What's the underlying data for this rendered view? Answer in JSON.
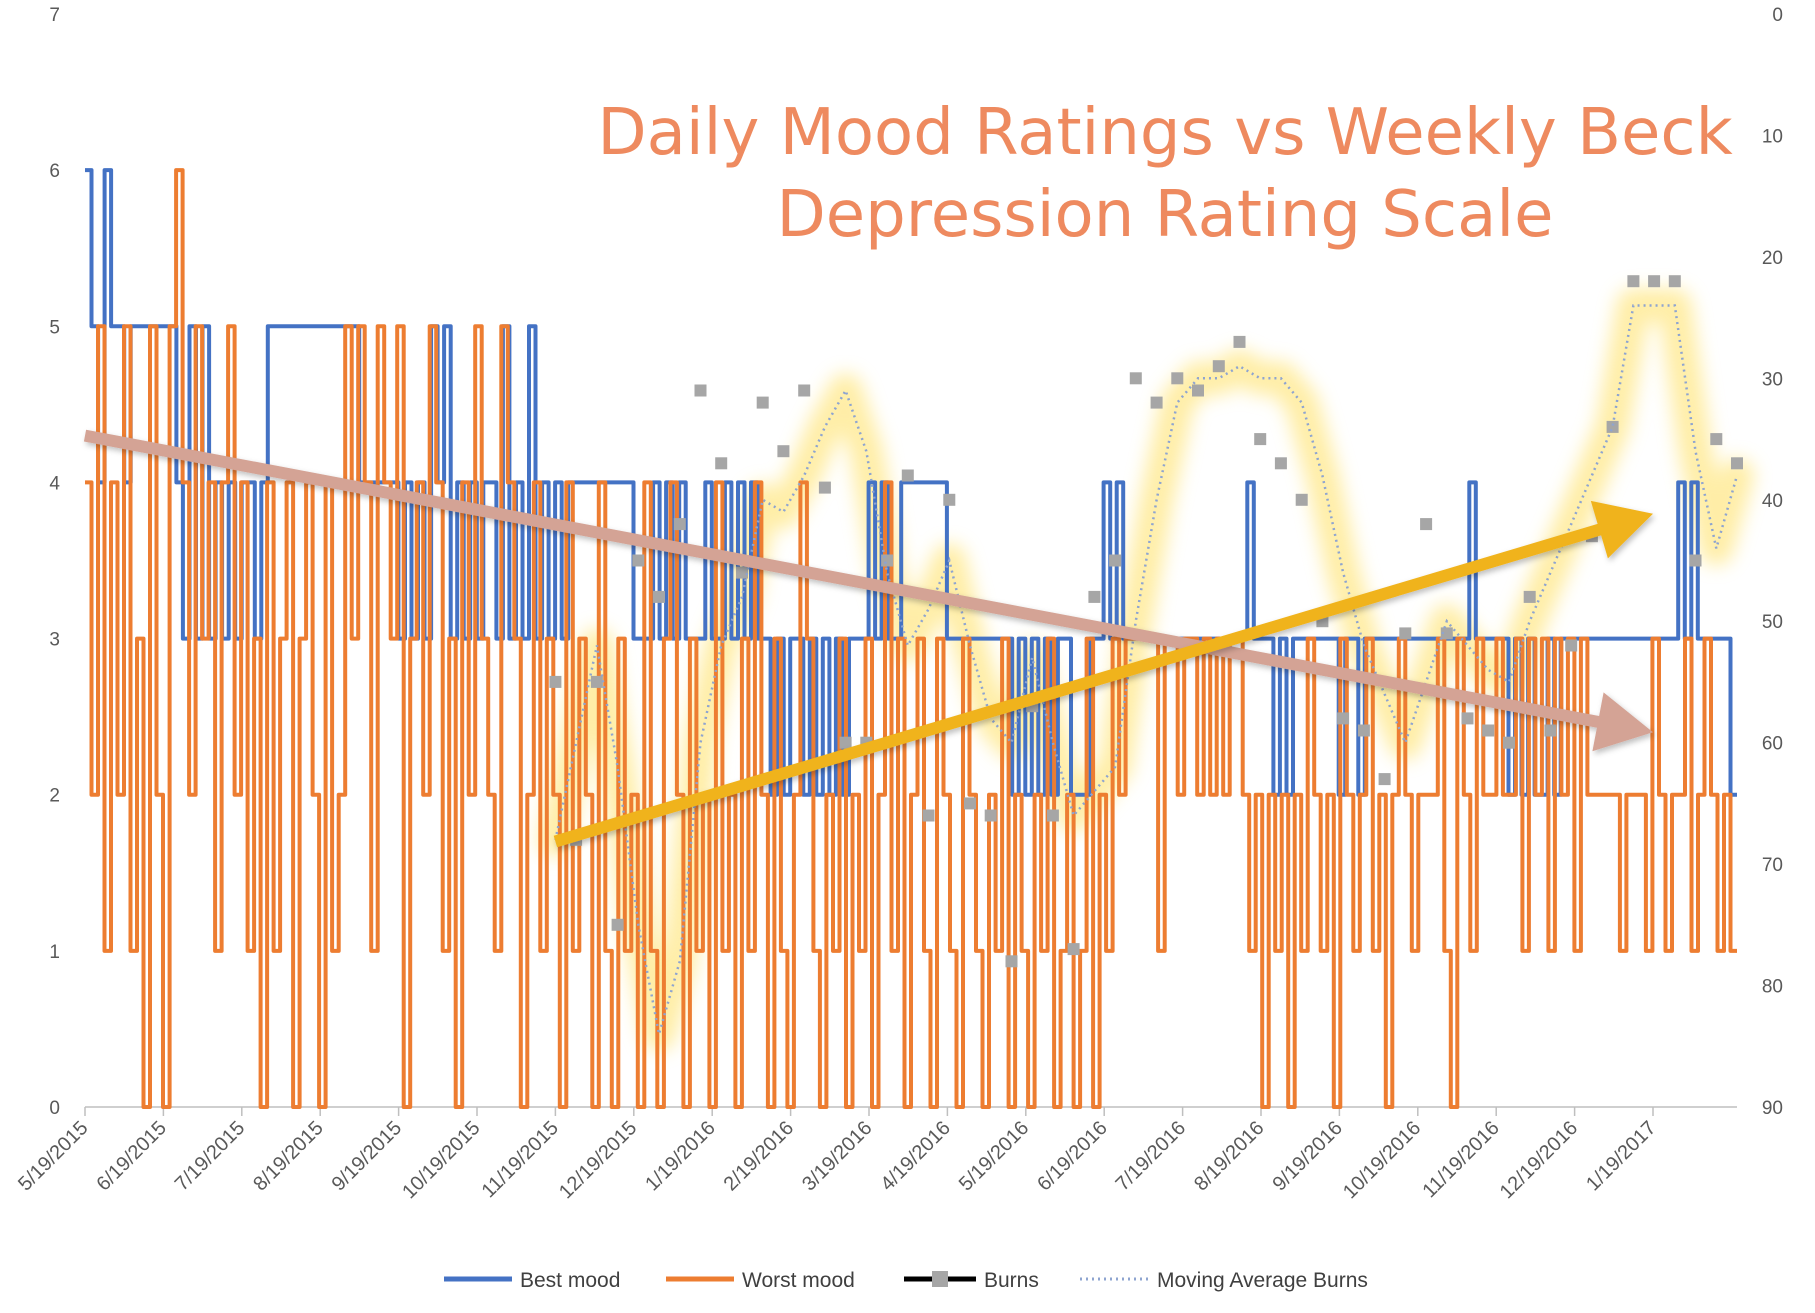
{
  "chart_data": {
    "type": "line",
    "title_lines": [
      "Daily Mood Ratings vs Weekly Beck",
      "Depression Rating Scale"
    ],
    "x_tick_labels": [
      "5/19/2015",
      "6/19/2015",
      "7/19/2015",
      "8/19/2015",
      "9/19/2015",
      "10/19/2015",
      "11/19/2015",
      "12/19/2015",
      "1/19/2016",
      "2/19/2016",
      "3/19/2016",
      "4/19/2016",
      "5/19/2016",
      "6/19/2016",
      "7/19/2016",
      "8/19/2016",
      "9/19/2016",
      "10/19/2016",
      "11/19/2016",
      "12/19/2016",
      "1/19/2017"
    ],
    "y_left": {
      "ticks": [
        "0",
        "1",
        "2",
        "3",
        "4",
        "5",
        "6",
        "7"
      ],
      "ylim": [
        0,
        7
      ]
    },
    "y_right": {
      "ticks": [
        "0",
        "10",
        "20",
        "30",
        "40",
        "50",
        "60",
        "70",
        "80",
        "90"
      ],
      "ylim": [
        90,
        0
      ],
      "inverted": true
    },
    "colors": {
      "best": "#4472c4",
      "worst": "#ed7d31",
      "burns": "#a6a6a6",
      "moving_average": "#8ea4d0",
      "glow": "#ffe88a",
      "trend_down": "#d4a395",
      "trend_up": "#f0b31c",
      "title": "#ee8a5f"
    },
    "series": [
      {
        "name": "Best mood",
        "axis": "left",
        "values": [
          6,
          5,
          4,
          6,
          5,
          5,
          4,
          5,
          5,
          5,
          5,
          5,
          5,
          5,
          4,
          3,
          5,
          3,
          5,
          3,
          4,
          3,
          4,
          3,
          4,
          4,
          3,
          4,
          5,
          5,
          5,
          5,
          5,
          5,
          5,
          5,
          5,
          5,
          5,
          5,
          5,
          5,
          4,
          4,
          4,
          4,
          4,
          4,
          3,
          4,
          3,
          4,
          3,
          5,
          4,
          5,
          3,
          4,
          3,
          4,
          3,
          4,
          4,
          3,
          5,
          3,
          4,
          3,
          5,
          3,
          4,
          3,
          4,
          3,
          4,
          4,
          4,
          4,
          4,
          4,
          4,
          4,
          4,
          4,
          3,
          3,
          3,
          4,
          3,
          4,
          3,
          4,
          3,
          3,
          3,
          4,
          3,
          3,
          4,
          3,
          4,
          3,
          4,
          3,
          3,
          2,
          3,
          2,
          3,
          3,
          2,
          3,
          2,
          3,
          2,
          3,
          2,
          3,
          3,
          3,
          4,
          3,
          4,
          3,
          3,
          4,
          4,
          4,
          4,
          4,
          4,
          4,
          3,
          3,
          3,
          3,
          3,
          3,
          3,
          3,
          3,
          3,
          2,
          3,
          2,
          3,
          2,
          3,
          2,
          3,
          3,
          2,
          2,
          2,
          3,
          3,
          4,
          3,
          4,
          3,
          3,
          3,
          3,
          3,
          3,
          3,
          3,
          3,
          3,
          3,
          3,
          3,
          3,
          3,
          3,
          3,
          3,
          3,
          4,
          3,
          3,
          3,
          2,
          3,
          2,
          3,
          3,
          3,
          3,
          3,
          3,
          3,
          2,
          3,
          3,
          2,
          3,
          3,
          3,
          3,
          3,
          3,
          3,
          3,
          3,
          3,
          3,
          3,
          3,
          3,
          3,
          3,
          4,
          3,
          3,
          3,
          3,
          3,
          2,
          3,
          2,
          3,
          2,
          2,
          3,
          2,
          3,
          3,
          3,
          3,
          3,
          3,
          3,
          3,
          3,
          3,
          3,
          3,
          3,
          3,
          3,
          3,
          3,
          3,
          4,
          3,
          4,
          3,
          3,
          3,
          3,
          3,
          2
        ]
      },
      {
        "name": "Worst mood",
        "axis": "left",
        "values": [
          4,
          2,
          5,
          1,
          4,
          2,
          5,
          1,
          3,
          0,
          5,
          2,
          0,
          5,
          6,
          4,
          2,
          5,
          3,
          4,
          1,
          4,
          5,
          2,
          4,
          1,
          3,
          0,
          4,
          1,
          3,
          4,
          0,
          3,
          4,
          2,
          0,
          4,
          1,
          2,
          5,
          3,
          5,
          4,
          1,
          5,
          4,
          3,
          5,
          0,
          3,
          4,
          2,
          5,
          4,
          1,
          3,
          0,
          4,
          2,
          5,
          3,
          2,
          1,
          5,
          4,
          3,
          0,
          2,
          4,
          1,
          3,
          2,
          0,
          4,
          1,
          3,
          2,
          0,
          4,
          1,
          0,
          3,
          1,
          2,
          0,
          4,
          1,
          0,
          3,
          4,
          2,
          0,
          3,
          1,
          2,
          0,
          4,
          1,
          2,
          0,
          3,
          1,
          4,
          2,
          0,
          3,
          1,
          0,
          2,
          4,
          3,
          1,
          0,
          2,
          1,
          3,
          0,
          2,
          1,
          3,
          0,
          2,
          4,
          1,
          3,
          0,
          2,
          3,
          1,
          0,
          3,
          2,
          1,
          0,
          3,
          2,
          1,
          0,
          2,
          1,
          3,
          0,
          2,
          1,
          0,
          2,
          1,
          3,
          0,
          1,
          2,
          0,
          1,
          3,
          0,
          2,
          1,
          3,
          2,
          3,
          3,
          3,
          3,
          3,
          1,
          3,
          3,
          2,
          3,
          3,
          2,
          3,
          2,
          3,
          2,
          3,
          3,
          2,
          1,
          2,
          0,
          2,
          1,
          2,
          0,
          2,
          1,
          3,
          2,
          1,
          2,
          0,
          3,
          2,
          1,
          2,
          3,
          1,
          2,
          0,
          2,
          3,
          2,
          1,
          2,
          2,
          2,
          3,
          1,
          0,
          3,
          2,
          1,
          3,
          2,
          2,
          3,
          2,
          2,
          3,
          1,
          3,
          2,
          3,
          1,
          3,
          2,
          3,
          1,
          3,
          2,
          2,
          2,
          2,
          2,
          1,
          2,
          2,
          2,
          1,
          3,
          2,
          1,
          2,
          2,
          3,
          1,
          2,
          3,
          2,
          1,
          2,
          1
        ]
      },
      {
        "name": "Burns",
        "axis": "right",
        "values": [
          55,
          68,
          55,
          75,
          45,
          48,
          42,
          31,
          37,
          46,
          32,
          36,
          31,
          39,
          60,
          60,
          45,
          38,
          66,
          40,
          65,
          66,
          78,
          57,
          66,
          77,
          48,
          45,
          30,
          32,
          30,
          31,
          29,
          27,
          35,
          37,
          40,
          50,
          58,
          59,
          63,
          51,
          42,
          51,
          58,
          59,
          60,
          48,
          59,
          52,
          43,
          34,
          22,
          22,
          22,
          45,
          35,
          37
        ]
      },
      {
        "name": "Moving Average Burns",
        "axis": "right",
        "values": [
          68,
          60,
          52,
          62,
          75,
          84,
          78,
          60,
          52,
          48,
          40,
          41,
          38,
          34,
          31,
          36,
          46,
          52,
          49,
          45,
          52,
          58,
          60,
          53,
          60,
          66,
          64,
          62,
          50,
          40,
          32,
          30,
          30,
          29,
          30,
          30,
          32,
          38,
          46,
          52,
          56,
          60,
          55,
          50,
          52,
          54,
          55,
          50,
          46,
          42,
          38,
          34,
          24,
          24,
          24,
          36,
          44,
          38
        ]
      }
    ],
    "legend": {
      "placement": "bottom",
      "entries": [
        "Best mood",
        "Worst mood",
        "Burns",
        "Moving Average Burns"
      ]
    },
    "annotations": [
      {
        "kind": "arrow",
        "direction": "down",
        "color": "trend_down",
        "from": {
          "x": "5/19/2015",
          "y": 4.3
        },
        "to": {
          "x": "1/19/2017",
          "y": 2.4
        }
      },
      {
        "kind": "arrow",
        "direction": "up",
        "color": "trend_up",
        "from": {
          "x": "11/19/2015",
          "y": 1.7
        },
        "to": {
          "x": "1/19/2017",
          "y": 3.8
        }
      }
    ]
  }
}
